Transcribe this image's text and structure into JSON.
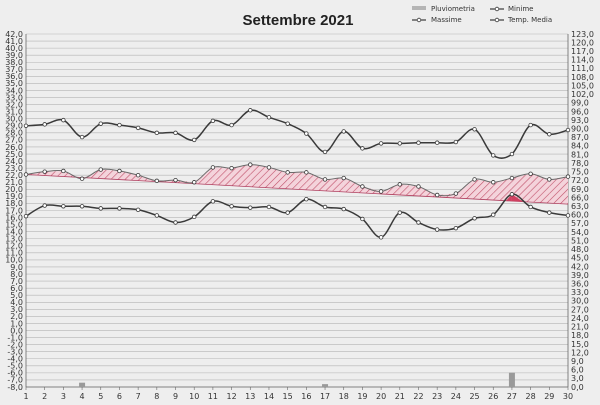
{
  "chart_data": {
    "type": "line",
    "title": "Settembre 2021",
    "legend": {
      "placement": "top-right",
      "entries": [
        "Pluviometria",
        "Minime",
        "Massime",
        "Temp. Media"
      ]
    },
    "x": [
      1,
      2,
      3,
      4,
      5,
      6,
      7,
      8,
      9,
      10,
      11,
      12,
      13,
      14,
      15,
      16,
      17,
      18,
      19,
      20,
      21,
      22,
      23,
      24,
      25,
      26,
      27,
      28,
      29,
      30
    ],
    "xlim": [
      1,
      30
    ],
    "ylim_left": [
      -8,
      42
    ],
    "ylim_right": [
      0,
      123
    ],
    "y_ticks_left": [
      "42,0",
      "41,0",
      "40,0",
      "39,0",
      "38,0",
      "37,0",
      "36,0",
      "35,0",
      "34,0",
      "33,0",
      "32,0",
      "31,0",
      "30,0",
      "29,0",
      "28,0",
      "27,0",
      "26,0",
      "25,0",
      "24,0",
      "23,0",
      "22,0",
      "21,0",
      "20,0",
      "19,0",
      "18,0",
      "17,0",
      "16,0",
      "15,0",
      "14,0",
      "13,0",
      "12,0",
      "11,0",
      "10,0",
      "9,0",
      "8,0",
      "7,0",
      "6,0",
      "5,0",
      "4,0",
      "3,0",
      "2,0",
      "1,0",
      "0,0",
      "-1,0",
      "-2,0",
      "-3,0",
      "-4,0",
      "-5,0",
      "-6,0",
      "-7,0",
      "-8,0"
    ],
    "y_ticks_right": [
      "123,0",
      "120,0",
      "117,0",
      "114,0",
      "111,0",
      "108,0",
      "105,0",
      "102,0",
      "99,0",
      "96,0",
      "93,0",
      "90,0",
      "87,0",
      "84,0",
      "81,0",
      "78,0",
      "75,0",
      "72,0",
      "69,0",
      "66,0",
      "63,0",
      "60,0",
      "57,0",
      "54,0",
      "51,0",
      "48,0",
      "45,0",
      "42,0",
      "39,0",
      "36,0",
      "33,0",
      "30,0",
      "27,0",
      "24,0",
      "21,0",
      "18,0",
      "15,0",
      "12,0",
      "9,0",
      "6,0",
      "3,0",
      "0,0"
    ],
    "grid": true,
    "series": [
      {
        "name": "Massime",
        "values": [
          29.0,
          29.2,
          29.8,
          27.4,
          29.3,
          29.1,
          28.7,
          28.0,
          28.0,
          27.0,
          29.7,
          29.1,
          31.2,
          30.2,
          29.3,
          27.9,
          25.3,
          28.2,
          25.8,
          26.5,
          26.5,
          26.6,
          26.6,
          26.7,
          28.5,
          24.8,
          25.0,
          29.1,
          27.8,
          28.4
        ]
      },
      {
        "name": "Minime",
        "values": [
          16.2,
          17.7,
          17.6,
          17.6,
          17.3,
          17.3,
          17.1,
          16.3,
          15.3,
          16.1,
          18.3,
          17.6,
          17.4,
          17.5,
          16.7,
          18.6,
          17.5,
          17.2,
          15.8,
          13.2,
          16.7,
          15.3,
          14.3,
          14.5,
          15.9,
          16.4,
          19.3,
          17.5,
          16.7,
          16.3
        ]
      },
      {
        "name": "Temp. Media",
        "values": [
          22.1,
          22.5,
          22.6,
          21.5,
          22.8,
          22.6,
          22.0,
          21.2,
          21.3,
          21.0,
          23.1,
          23.0,
          23.5,
          23.1,
          22.4,
          22.4,
          21.4,
          21.6,
          20.4,
          19.7,
          20.7,
          20.4,
          19.2,
          19.4,
          21.4,
          21.0,
          21.6,
          22.2,
          21.4,
          21.8
        ]
      },
      {
        "name": "Pluviometria",
        "values": [
          0,
          0,
          0,
          1.5,
          0,
          0,
          0,
          0,
          0,
          0,
          0,
          0,
          0,
          0,
          0,
          0,
          1,
          0,
          0,
          0,
          0,
          0,
          0,
          0,
          0,
          0,
          5,
          0,
          0,
          0
        ]
      }
    ],
    "reference_line": {
      "start": 22.1,
      "end": 17.9
    },
    "colors": {
      "lines": "#3a3a3a",
      "hatch": "#c0506a",
      "fill_below": "#f2c8d2",
      "highlight": "#d04060",
      "rain": "#999999"
    }
  }
}
